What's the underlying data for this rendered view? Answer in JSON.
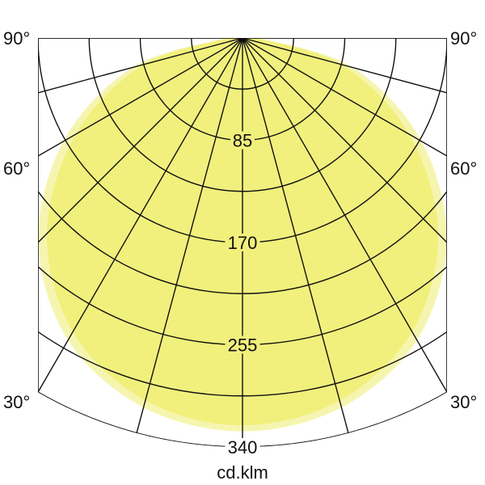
{
  "chart_data": {
    "type": "polar",
    "unit_label": "cd.klm",
    "radial_range": [
      0,
      340
    ],
    "radial_ticks": [
      85,
      170,
      255,
      340
    ],
    "radial_minor_step": 42.5,
    "angle_step_deg": 15,
    "angle_labels": [
      "90°",
      "60°",
      "30°"
    ],
    "grid": true,
    "series": [
      {
        "color": "#f6f5b0",
        "angles": [
          0,
          15,
          30,
          45,
          60,
          75,
          90
        ],
        "values": [
          327,
          318,
          290,
          240,
          172,
          95,
          15
        ]
      },
      {
        "color": "#f1f07c",
        "angles": [
          0,
          15,
          30,
          45,
          60,
          75,
          90
        ],
        "values": [
          322,
          312,
          282,
          230,
          160,
          85,
          10
        ]
      }
    ]
  }
}
